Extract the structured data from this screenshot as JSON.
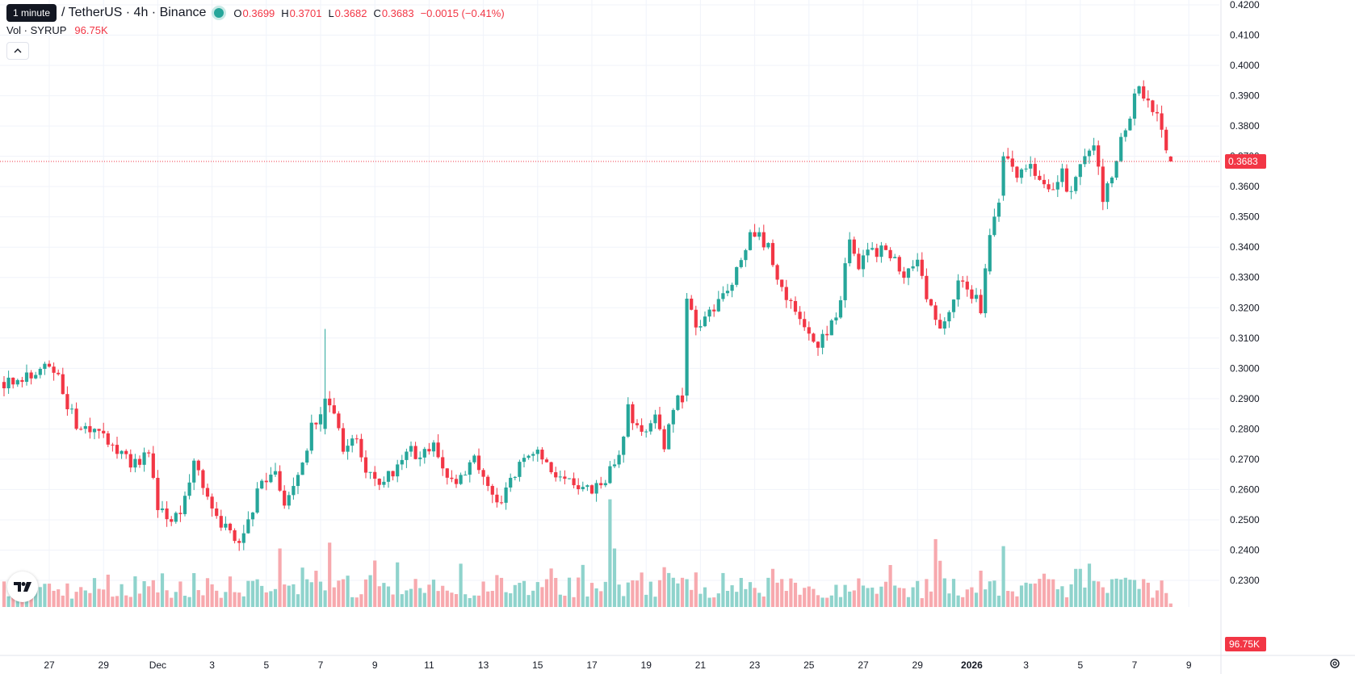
{
  "header": {
    "interval_tooltip": "1 minute",
    "symbol": "/ TetherUS · 4h · Binance",
    "ohlc": [
      {
        "key": "O",
        "value": "0.3699"
      },
      {
        "key": "H",
        "value": "0.3701"
      },
      {
        "key": "L",
        "value": "0.3682"
      },
      {
        "key": "C",
        "value": "0.3683"
      }
    ],
    "change": "−0.0015 (−0.41%)"
  },
  "volume_legend": {
    "label": "Vol · SYRUP",
    "value": "96.75K"
  },
  "collapse_icon": "chevron-up-icon",
  "colors": {
    "up": "#26a69a",
    "down": "#f23645",
    "up_volume": "#8fd3cc",
    "down_volume": "#f7a9ae",
    "grid": "#f0f3fa",
    "text": "#131722"
  },
  "chart_data": {
    "type": "candlestick",
    "interval": "4h",
    "price_axis": {
      "ticks": [
        "0.4200",
        "0.4100",
        "0.4000",
        "0.3900",
        "0.3800",
        "0.3700",
        "0.3600",
        "0.3500",
        "0.3400",
        "0.3300",
        "0.3200",
        "0.3100",
        "0.3000",
        "0.2900",
        "0.2800",
        "0.2700",
        "0.2600",
        "0.2500",
        "0.2400",
        "0.2300"
      ],
      "range": [
        0.2255,
        0.4205
      ]
    },
    "time_axis": {
      "labels": [
        "27",
        "29",
        "Dec",
        "3",
        "5",
        "7",
        "9",
        "11",
        "13",
        "15",
        "17",
        "19",
        "21",
        "23",
        "25",
        "27",
        "29",
        "2026",
        "3",
        "5",
        "7",
        "9"
      ],
      "bold": [
        "2026"
      ],
      "positions": [
        0,
        12,
        24,
        36,
        48,
        60,
        72,
        84,
        96,
        108,
        120,
        132,
        144,
        156,
        168,
        180,
        192,
        204,
        216,
        228,
        240,
        252
      ]
    },
    "first_bar_index": -10,
    "close_trend": [
      [
        -10,
        0.2955
      ],
      [
        -7,
        0.296
      ],
      [
        -3,
        0.299
      ],
      [
        -1,
        0.302
      ],
      [
        2,
        0.2995
      ],
      [
        3,
        0.292
      ],
      [
        6,
        0.281
      ],
      [
        9,
        0.278
      ],
      [
        12,
        0.28
      ],
      [
        14,
        0.273
      ],
      [
        18,
        0.269
      ],
      [
        22,
        0.271
      ],
      [
        24,
        0.253
      ],
      [
        27,
        0.249
      ],
      [
        30,
        0.256
      ],
      [
        32,
        0.269
      ],
      [
        35,
        0.256
      ],
      [
        38,
        0.249
      ],
      [
        41,
        0.243
      ],
      [
        43,
        0.244
      ],
      [
        45,
        0.254
      ],
      [
        47,
        0.263
      ],
      [
        50,
        0.264
      ],
      [
        52,
        0.256
      ],
      [
        55,
        0.264
      ],
      [
        58,
        0.28
      ],
      [
        61,
        0.29
      ],
      [
        63,
        0.284
      ],
      [
        65,
        0.273
      ],
      [
        68,
        0.276
      ],
      [
        70,
        0.266
      ],
      [
        73,
        0.262
      ],
      [
        76,
        0.266
      ],
      [
        79,
        0.274
      ],
      [
        82,
        0.27
      ],
      [
        85,
        0.274
      ],
      [
        88,
        0.263
      ],
      [
        91,
        0.264
      ],
      [
        94,
        0.272
      ],
      [
        97,
        0.26
      ],
      [
        99,
        0.255
      ],
      [
        102,
        0.263
      ],
      [
        105,
        0.269
      ],
      [
        108,
        0.275
      ],
      [
        110,
        0.269
      ],
      [
        112,
        0.264
      ],
      [
        114,
        0.262
      ],
      [
        117,
        0.261
      ],
      [
        120,
        0.259
      ],
      [
        123,
        0.263
      ],
      [
        126,
        0.273
      ],
      [
        128,
        0.286
      ],
      [
        131,
        0.278
      ],
      [
        134,
        0.287
      ],
      [
        136,
        0.275
      ],
      [
        138,
        0.288
      ],
      [
        140,
        0.29
      ],
      [
        141,
        0.323
      ],
      [
        143,
        0.314
      ],
      [
        146,
        0.318
      ],
      [
        149,
        0.325
      ],
      [
        152,
        0.332
      ],
      [
        155,
        0.343
      ],
      [
        157,
        0.344
      ],
      [
        159,
        0.34
      ],
      [
        161,
        0.33
      ],
      [
        164,
        0.322
      ],
      [
        166,
        0.315
      ],
      [
        168,
        0.31
      ],
      [
        170,
        0.308
      ],
      [
        173,
        0.314
      ],
      [
        175,
        0.324
      ],
      [
        177,
        0.343
      ],
      [
        179,
        0.332
      ],
      [
        181,
        0.339
      ],
      [
        183,
        0.338
      ],
      [
        185,
        0.341
      ],
      [
        187,
        0.335
      ],
      [
        189,
        0.331
      ],
      [
        192,
        0.335
      ],
      [
        195,
        0.32
      ],
      [
        197,
        0.312
      ],
      [
        199,
        0.318
      ],
      [
        201,
        0.33
      ],
      [
        203,
        0.327
      ],
      [
        206,
        0.32
      ],
      [
        208,
        0.344
      ],
      [
        210,
        0.356
      ],
      [
        211,
        0.37
      ],
      [
        214,
        0.363
      ],
      [
        217,
        0.368
      ],
      [
        219,
        0.362
      ],
      [
        222,
        0.357
      ],
      [
        224,
        0.364
      ],
      [
        226,
        0.357
      ],
      [
        228,
        0.367
      ],
      [
        231,
        0.374
      ],
      [
        233,
        0.356
      ],
      [
        235,
        0.364
      ],
      [
        237,
        0.377
      ],
      [
        239,
        0.384
      ],
      [
        241,
        0.395
      ],
      [
        242,
        0.388
      ],
      [
        244,
        0.386
      ],
      [
        246,
        0.38
      ],
      [
        247,
        0.37
      ],
      [
        248,
        0.3683
      ]
    ],
    "big_moves": [
      {
        "bar": 141,
        "open": 0.291,
        "close": 0.323
      },
      {
        "bar": 208,
        "open": 0.332,
        "close": 0.344
      },
      {
        "bar": 211,
        "open": 0.357,
        "close": 0.37
      },
      {
        "bar": 61,
        "open": 0.28,
        "close": 0.29,
        "high": 0.313
      }
    ],
    "volume_spikes": [
      {
        "bar": 124,
        "value": 0.92
      },
      {
        "bar": 125,
        "value": 0.5
      },
      {
        "bar": 211,
        "value": 0.52
      },
      {
        "bar": 62,
        "value": 0.55
      },
      {
        "bar": 59,
        "value": 0.31
      },
      {
        "bar": 51,
        "value": 0.5
      },
      {
        "bar": 91,
        "value": 0.37
      },
      {
        "bar": 196,
        "value": 0.58
      }
    ],
    "last_price": {
      "value": 0.3683,
      "label": "0.3683"
    },
    "last_volume": {
      "label": "96.75K"
    }
  }
}
